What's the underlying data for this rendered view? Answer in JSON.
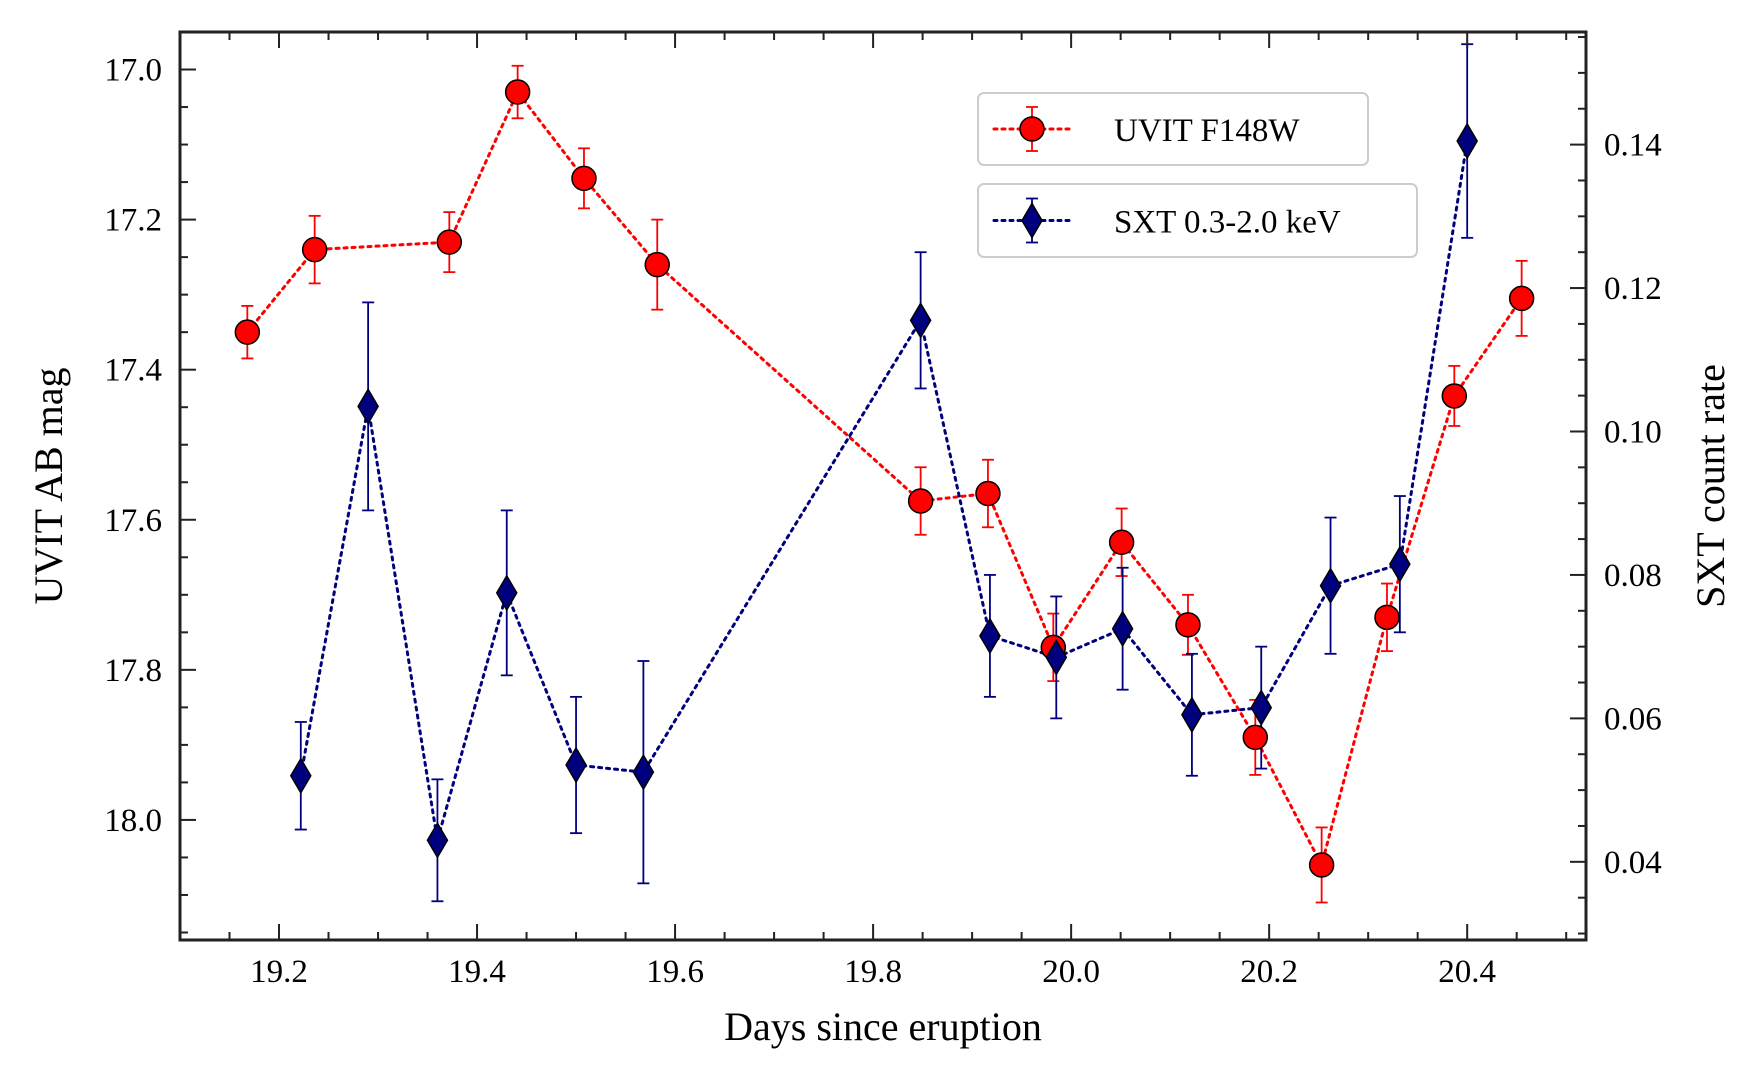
{
  "chart_data": {
    "type": "scatter",
    "xlabel": "Days since eruption",
    "ylabel_left": "UVIT AB mag",
    "ylabel_right": "SXT count rate",
    "xlim": [
      19.1,
      20.52
    ],
    "ylim_left": [
      18.16,
      16.95
    ],
    "ylim_right": [
      0.0291,
      0.1557
    ],
    "x_ticks": [
      19.2,
      19.4,
      19.6,
      19.8,
      20.0,
      20.2,
      20.4
    ],
    "x_tick_labels": [
      "19.2",
      "19.4",
      "19.6",
      "19.8",
      "20.0",
      "20.2",
      "20.4"
    ],
    "y_left_ticks": [
      17.0,
      17.2,
      17.4,
      17.6,
      17.8,
      18.0
    ],
    "y_left_tick_labels": [
      "17.0",
      "17.2",
      "17.4",
      "17.6",
      "17.8",
      "18.0"
    ],
    "y_right_ticks": [
      0.04,
      0.06,
      0.08,
      0.1,
      0.12,
      0.14
    ],
    "y_right_tick_labels": [
      "0.04",
      "0.06",
      "0.08",
      "0.10",
      "0.12",
      "0.14"
    ],
    "series": [
      {
        "name": "UVIT F148W",
        "axis": "left",
        "marker": "circle",
        "color": "#ff0000",
        "edge_color": "#000000",
        "line_style": "dotted",
        "x": [
          19.168,
          19.236,
          19.372,
          19.441,
          19.508,
          19.582,
          19.848,
          19.916,
          19.982,
          20.051,
          20.118,
          20.186,
          20.253,
          20.319,
          20.387,
          20.455
        ],
        "y": [
          17.35,
          17.24,
          17.23,
          17.03,
          17.145,
          17.26,
          17.575,
          17.565,
          17.77,
          17.63,
          17.74,
          17.89,
          18.06,
          17.73,
          17.435,
          17.305
        ],
        "err": [
          0.035,
          0.045,
          0.04,
          0.035,
          0.04,
          0.06,
          0.045,
          0.045,
          0.045,
          0.045,
          0.04,
          0.05,
          0.05,
          0.045,
          0.04,
          0.05
        ]
      },
      {
        "name": "SXT 0.3-2.0 keV",
        "axis": "right",
        "marker": "diamond",
        "color": "#00007f",
        "edge_color": "#000000",
        "line_style": "dotted",
        "x": [
          19.222,
          19.29,
          19.36,
          19.43,
          19.5,
          19.568,
          19.848,
          19.918,
          19.985,
          20.052,
          20.122,
          20.192,
          20.262,
          20.332,
          20.4
        ],
        "y": [
          0.052,
          0.1035,
          0.043,
          0.0775,
          0.0535,
          0.0525,
          0.1155,
          0.0715,
          0.0685,
          0.0725,
          0.0605,
          0.0615,
          0.0785,
          0.0815,
          0.1405
        ],
        "err": [
          0.0075,
          0.0145,
          0.0085,
          0.0115,
          0.0095,
          0.0155,
          0.0095,
          0.0085,
          0.0085,
          0.0085,
          0.0085,
          0.0085,
          0.0095,
          0.0095,
          0.0135
        ]
      }
    ],
    "legend": {
      "placement": "top-right",
      "entries": [
        "UVIT F148W",
        "SXT 0.3-2.0 keV"
      ]
    },
    "grid": false
  }
}
